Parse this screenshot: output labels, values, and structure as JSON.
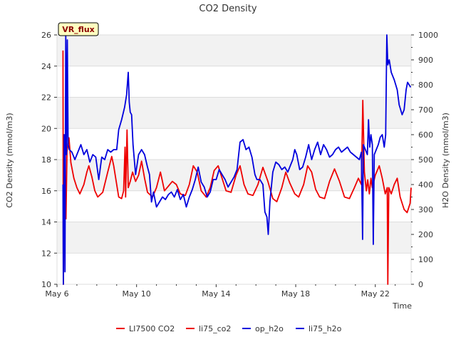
{
  "chart_data": {
    "type": "line",
    "title": "CO2 Density",
    "xlabel": "Time",
    "ylabel": "CO2 Density (mmol/m3)",
    "y2label": "H2O Density (mmol/m3)",
    "badge": "VR_flux",
    "x_ticks": [
      "May 6",
      "May 10",
      "May 14",
      "May 18",
      "May 22"
    ],
    "x_tick_days": [
      6,
      10,
      14,
      18,
      22
    ],
    "xlim": [
      6,
      23.8
    ],
    "ylim": [
      10,
      26
    ],
    "y_ticks": [
      "10",
      "12",
      "14",
      "16",
      "18",
      "20",
      "22",
      "24",
      "26"
    ],
    "y2lim": [
      0,
      1000
    ],
    "y2_ticks": [
      "0",
      "100",
      "200",
      "300",
      "400",
      "500",
      "600",
      "700",
      "800",
      "900",
      "1000"
    ],
    "bands": [
      [
        12,
        14
      ],
      [
        16,
        18
      ],
      [
        20,
        22
      ],
      [
        24,
        26
      ]
    ],
    "colors": {
      "red": "#ee0000",
      "blue": "#0000dd",
      "band": "#f2f2f2",
      "badge_bg": "#ffffc0"
    },
    "legend": [
      {
        "name": "LI7500 CO2",
        "color": "#ee0000"
      },
      {
        "name": "li75_co2",
        "color": "#ee0000"
      },
      {
        "name": "op_h2o",
        "color": "#0000dd"
      },
      {
        "name": "li75_h2o",
        "color": "#0000dd"
      }
    ],
    "series": [
      {
        "name": "li75_co2",
        "axis": "left",
        "color": "#ee0000",
        "points": [
          [
            6.3,
            25.0
          ],
          [
            6.32,
            10.0
          ],
          [
            6.38,
            16.5
          ],
          [
            6.45,
            14.2
          ],
          [
            6.5,
            18.5
          ],
          [
            6.6,
            19.4
          ],
          [
            6.7,
            17.8
          ],
          [
            6.85,
            16.8
          ],
          [
            7.0,
            16.2
          ],
          [
            7.15,
            15.8
          ],
          [
            7.35,
            16.4
          ],
          [
            7.5,
            17.2
          ],
          [
            7.6,
            17.6
          ],
          [
            7.75,
            16.9
          ],
          [
            7.9,
            16.0
          ],
          [
            8.05,
            15.6
          ],
          [
            8.3,
            15.9
          ],
          [
            8.55,
            17.2
          ],
          [
            8.75,
            18.2
          ],
          [
            8.85,
            17.6
          ],
          [
            9.0,
            16.4
          ],
          [
            9.1,
            15.6
          ],
          [
            9.25,
            15.5
          ],
          [
            9.35,
            16.0
          ],
          [
            9.42,
            18.8
          ],
          [
            9.45,
            15.6
          ],
          [
            9.52,
            19.9
          ],
          [
            9.58,
            16.2
          ],
          [
            9.68,
            16.6
          ],
          [
            9.8,
            17.2
          ],
          [
            9.95,
            16.6
          ],
          [
            10.1,
            17.0
          ],
          [
            10.25,
            17.9
          ],
          [
            10.4,
            16.8
          ],
          [
            10.55,
            15.9
          ],
          [
            10.8,
            15.6
          ],
          [
            11.0,
            16.2
          ],
          [
            11.2,
            17.2
          ],
          [
            11.4,
            16.0
          ],
          [
            11.6,
            16.3
          ],
          [
            11.8,
            16.6
          ],
          [
            12.0,
            16.4
          ],
          [
            12.2,
            15.8
          ],
          [
            12.45,
            15.7
          ],
          [
            12.65,
            16.4
          ],
          [
            12.85,
            17.6
          ],
          [
            13.05,
            17.2
          ],
          [
            13.25,
            16.0
          ],
          [
            13.5,
            15.6
          ],
          [
            13.7,
            16.2
          ],
          [
            13.9,
            17.3
          ],
          [
            14.1,
            17.6
          ],
          [
            14.3,
            16.8
          ],
          [
            14.5,
            16.0
          ],
          [
            14.75,
            15.9
          ],
          [
            15.0,
            17.0
          ],
          [
            15.2,
            17.6
          ],
          [
            15.4,
            16.4
          ],
          [
            15.6,
            15.8
          ],
          [
            15.85,
            15.7
          ],
          [
            16.1,
            16.4
          ],
          [
            16.35,
            17.5
          ],
          [
            16.6,
            16.6
          ],
          [
            16.85,
            15.5
          ],
          [
            17.05,
            15.3
          ],
          [
            17.3,
            16.2
          ],
          [
            17.5,
            17.2
          ],
          [
            17.7,
            16.5
          ],
          [
            17.95,
            15.8
          ],
          [
            18.15,
            15.6
          ],
          [
            18.4,
            16.4
          ],
          [
            18.6,
            17.6
          ],
          [
            18.8,
            17.2
          ],
          [
            19.0,
            16.1
          ],
          [
            19.2,
            15.6
          ],
          [
            19.45,
            15.5
          ],
          [
            19.7,
            16.6
          ],
          [
            19.95,
            17.4
          ],
          [
            20.2,
            16.6
          ],
          [
            20.45,
            15.6
          ],
          [
            20.7,
            15.5
          ],
          [
            20.95,
            16.2
          ],
          [
            21.15,
            16.8
          ],
          [
            21.3,
            16.4
          ],
          [
            21.37,
            21.8
          ],
          [
            21.45,
            17.2
          ],
          [
            21.55,
            16.0
          ],
          [
            21.62,
            16.7
          ],
          [
            21.7,
            15.8
          ],
          [
            21.78,
            16.8
          ],
          [
            21.85,
            16.2
          ],
          [
            22.0,
            17.0
          ],
          [
            22.2,
            17.6
          ],
          [
            22.35,
            16.8
          ],
          [
            22.5,
            15.8
          ],
          [
            22.6,
            16.2
          ],
          [
            22.63,
            10.0
          ],
          [
            22.68,
            16.2
          ],
          [
            22.8,
            15.8
          ],
          [
            22.95,
            16.4
          ],
          [
            23.1,
            16.8
          ],
          [
            23.25,
            15.6
          ],
          [
            23.45,
            14.8
          ],
          [
            23.6,
            14.6
          ],
          [
            23.75,
            15.2
          ],
          [
            23.8,
            16.2
          ]
        ]
      },
      {
        "name": "li75_h2o",
        "axis": "right",
        "color": "#0000dd",
        "points": [
          [
            6.3,
            400
          ],
          [
            6.32,
            0
          ],
          [
            6.36,
            600
          ],
          [
            6.4,
            50
          ],
          [
            6.44,
            1000
          ],
          [
            6.48,
            520
          ],
          [
            6.52,
            980
          ],
          [
            6.56,
            560
          ],
          [
            6.62,
            540
          ],
          [
            6.75,
            530
          ],
          [
            6.9,
            500
          ],
          [
            7.05,
            530
          ],
          [
            7.2,
            560
          ],
          [
            7.35,
            520
          ],
          [
            7.5,
            540
          ],
          [
            7.65,
            490
          ],
          [
            7.8,
            520
          ],
          [
            7.95,
            510
          ],
          [
            8.1,
            420
          ],
          [
            8.25,
            510
          ],
          [
            8.4,
            500
          ],
          [
            8.55,
            540
          ],
          [
            8.7,
            530
          ],
          [
            8.85,
            540
          ],
          [
            9.0,
            540
          ],
          [
            9.1,
            620
          ],
          [
            9.25,
            660
          ],
          [
            9.4,
            710
          ],
          [
            9.5,
            760
          ],
          [
            9.58,
            850
          ],
          [
            9.63,
            730
          ],
          [
            9.68,
            690
          ],
          [
            9.75,
            680
          ],
          [
            9.82,
            560
          ],
          [
            9.95,
            440
          ],
          [
            10.1,
            520
          ],
          [
            10.25,
            540
          ],
          [
            10.4,
            520
          ],
          [
            10.55,
            470
          ],
          [
            10.65,
            440
          ],
          [
            10.75,
            330
          ],
          [
            10.85,
            370
          ],
          [
            11.0,
            310
          ],
          [
            11.15,
            330
          ],
          [
            11.3,
            350
          ],
          [
            11.45,
            340
          ],
          [
            11.6,
            360
          ],
          [
            11.75,
            370
          ],
          [
            11.9,
            350
          ],
          [
            12.05,
            380
          ],
          [
            12.2,
            340
          ],
          [
            12.35,
            360
          ],
          [
            12.5,
            310
          ],
          [
            12.65,
            350
          ],
          [
            12.8,
            380
          ],
          [
            12.95,
            420
          ],
          [
            13.1,
            470
          ],
          [
            13.25,
            410
          ],
          [
            13.4,
            390
          ],
          [
            13.55,
            350
          ],
          [
            13.7,
            370
          ],
          [
            13.85,
            420
          ],
          [
            14.0,
            420
          ],
          [
            14.15,
            460
          ],
          [
            14.3,
            440
          ],
          [
            14.45,
            420
          ],
          [
            14.6,
            390
          ],
          [
            14.75,
            410
          ],
          [
            14.9,
            430
          ],
          [
            15.05,
            460
          ],
          [
            15.2,
            570
          ],
          [
            15.35,
            580
          ],
          [
            15.5,
            540
          ],
          [
            15.65,
            550
          ],
          [
            15.8,
            510
          ],
          [
            15.95,
            440
          ],
          [
            16.05,
            420
          ],
          [
            16.2,
            420
          ],
          [
            16.35,
            400
          ],
          [
            16.45,
            290
          ],
          [
            16.55,
            270
          ],
          [
            16.62,
            200
          ],
          [
            16.7,
            330
          ],
          [
            16.85,
            450
          ],
          [
            17.0,
            490
          ],
          [
            17.15,
            480
          ],
          [
            17.3,
            460
          ],
          [
            17.45,
            470
          ],
          [
            17.6,
            450
          ],
          [
            17.75,
            480
          ],
          [
            17.85,
            500
          ],
          [
            17.95,
            540
          ],
          [
            18.05,
            520
          ],
          [
            18.2,
            460
          ],
          [
            18.35,
            470
          ],
          [
            18.5,
            510
          ],
          [
            18.65,
            560
          ],
          [
            18.8,
            500
          ],
          [
            18.95,
            540
          ],
          [
            19.1,
            570
          ],
          [
            19.25,
            520
          ],
          [
            19.4,
            560
          ],
          [
            19.55,
            540
          ],
          [
            19.7,
            510
          ],
          [
            19.85,
            520
          ],
          [
            20.0,
            540
          ],
          [
            20.15,
            550
          ],
          [
            20.3,
            530
          ],
          [
            20.45,
            540
          ],
          [
            20.6,
            550
          ],
          [
            20.75,
            530
          ],
          [
            20.9,
            520
          ],
          [
            21.05,
            510
          ],
          [
            21.2,
            500
          ],
          [
            21.3,
            530
          ],
          [
            21.36,
            180
          ],
          [
            21.4,
            560
          ],
          [
            21.5,
            540
          ],
          [
            21.6,
            520
          ],
          [
            21.66,
            660
          ],
          [
            21.72,
            550
          ],
          [
            21.78,
            600
          ],
          [
            21.85,
            560
          ],
          [
            21.9,
            160
          ],
          [
            21.95,
            520
          ],
          [
            22.05,
            540
          ],
          [
            22.15,
            560
          ],
          [
            22.25,
            590
          ],
          [
            22.35,
            600
          ],
          [
            22.45,
            550
          ],
          [
            22.52,
            600
          ],
          [
            22.58,
            1000
          ],
          [
            22.63,
            880
          ],
          [
            22.7,
            900
          ],
          [
            22.8,
            850
          ],
          [
            22.95,
            820
          ],
          [
            23.1,
            780
          ],
          [
            23.2,
            720
          ],
          [
            23.35,
            680
          ],
          [
            23.45,
            700
          ],
          [
            23.55,
            780
          ],
          [
            23.62,
            810
          ],
          [
            23.7,
            800
          ],
          [
            23.78,
            790
          ]
        ]
      }
    ]
  }
}
